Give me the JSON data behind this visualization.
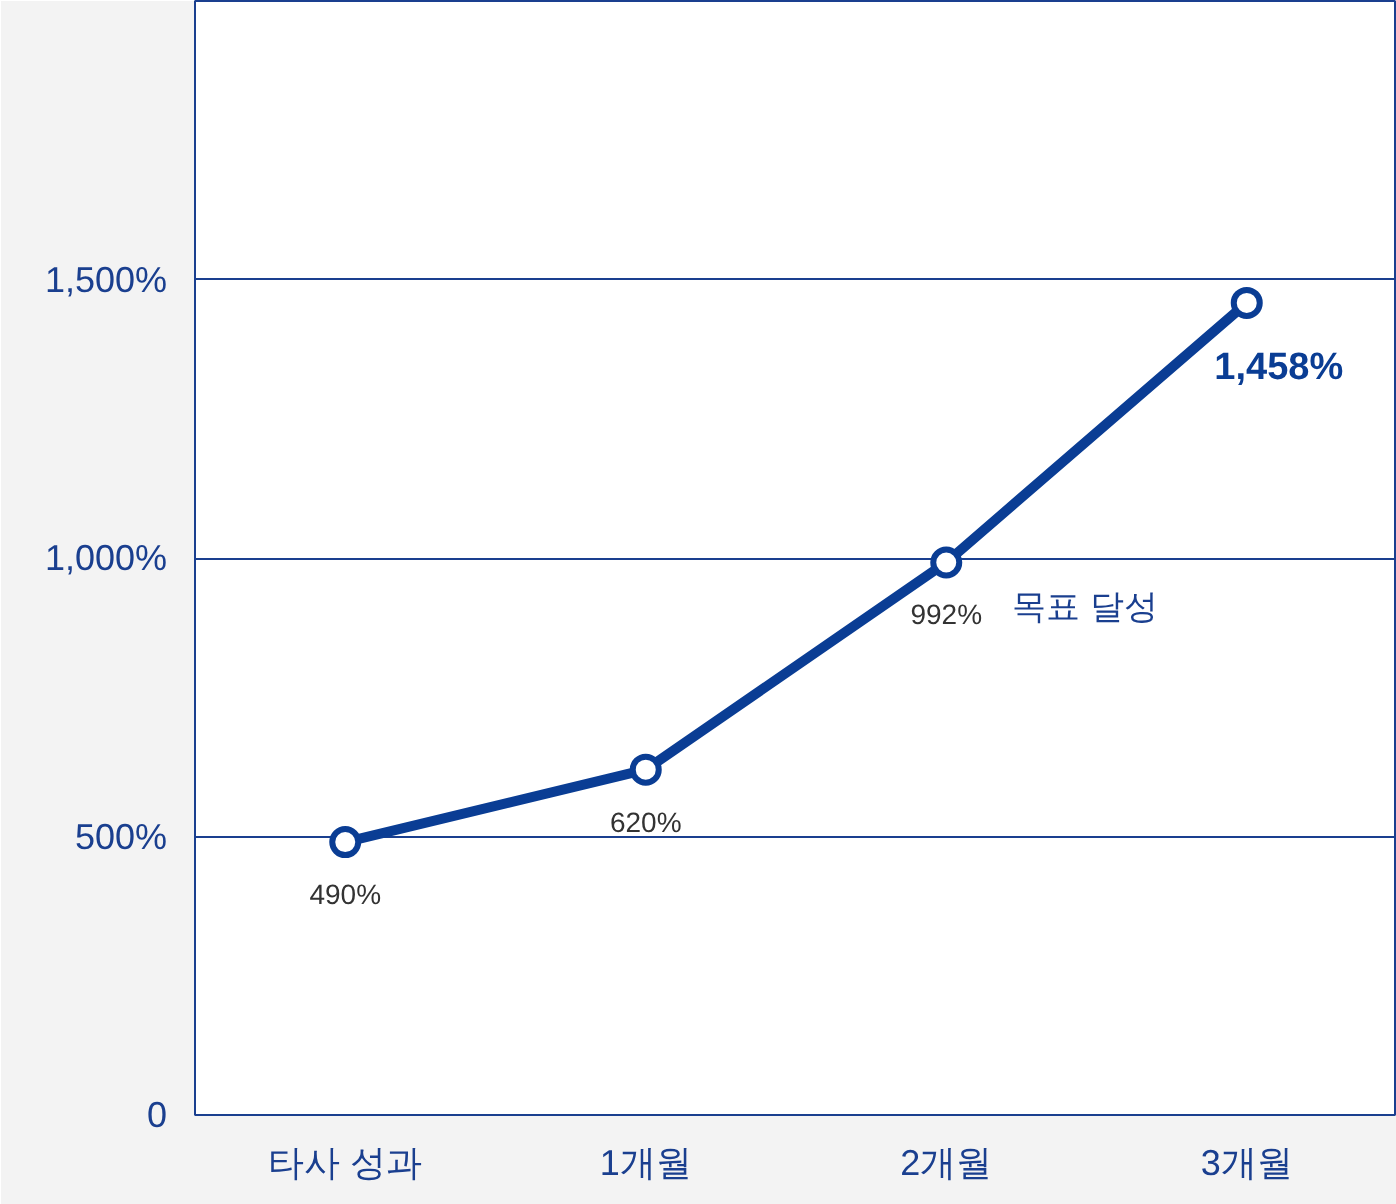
{
  "chart_data": {
    "type": "line",
    "categories": [
      "타사 성과",
      "1개월",
      "2개월",
      "3개월"
    ],
    "series": [
      {
        "color": "#0a3d94",
        "values": [
          490,
          620,
          992,
          1458
        ]
      }
    ],
    "ylim": [
      0,
      2000
    ],
    "yticks": [
      0,
      {
        "value": 500,
        "label": "500%"
      },
      {
        "value": 1000,
        "label": "1,000%"
      },
      {
        "value": 1500,
        "label": "1,500%"
      }
    ],
    "grid": "y",
    "marker": "circle",
    "line_style": "solid",
    "value_labels": [
      "490%",
      "620%",
      "992%",
      "1,458%"
    ],
    "annotations": [
      {
        "text": "목표 달성",
        "x": "2개월",
        "y": 992
      }
    ]
  }
}
